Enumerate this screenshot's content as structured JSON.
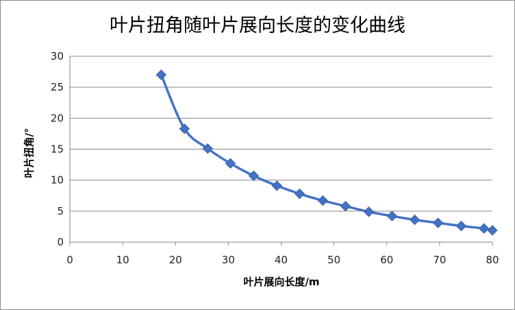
{
  "chart_data": {
    "type": "line",
    "title": "叶片扭角随叶片展向长度的变化曲线",
    "xlabel": "叶片展向长度/m",
    "ylabel": "叶片扭角/°",
    "xlim": [
      0,
      80
    ],
    "ylim": [
      0,
      30
    ],
    "xticks": [
      "0",
      "10",
      "20",
      "30",
      "40",
      "50",
      "60",
      "70",
      "80"
    ],
    "yticks": [
      "0",
      "5",
      "10",
      "15",
      "20",
      "25",
      "30"
    ],
    "grid": "horizontal",
    "marker": "diamond",
    "smooth": true,
    "color": "#4472C4",
    "series": [
      {
        "x": [
          17.3,
          21.7,
          26.1,
          30.4,
          34.8,
          39.2,
          43.5,
          47.9,
          52.2,
          56.6,
          61.0,
          65.3,
          69.7,
          74.1,
          78.4,
          80.0
        ],
        "y": [
          27.0,
          18.3,
          15.1,
          12.7,
          10.7,
          9.1,
          7.8,
          6.7,
          5.8,
          4.9,
          4.2,
          3.6,
          3.1,
          2.6,
          2.2,
          1.9
        ]
      }
    ]
  }
}
